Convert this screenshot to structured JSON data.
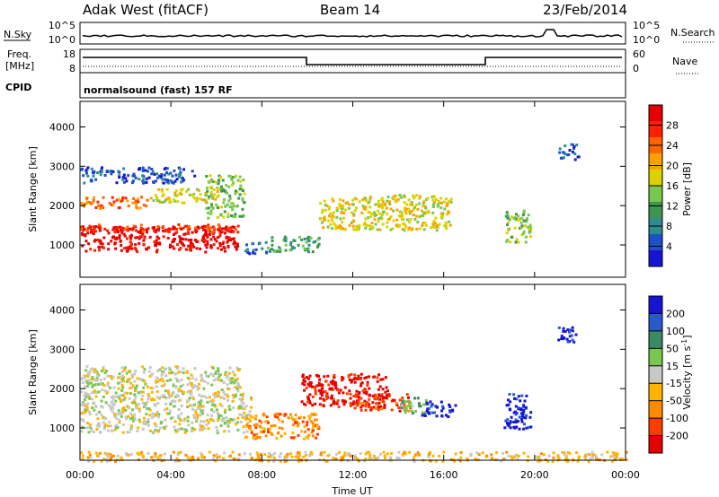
{
  "header": {
    "radar": "Adak West (fitACF)",
    "beam": "Beam 14",
    "date": "23/Feb/2014"
  },
  "strip_nsky": {
    "left_label": "N.Sky",
    "left_ticks": [
      "10^5",
      "10^0"
    ],
    "right_label": "N.Search",
    "right_ticks": [
      "10^5",
      "10^0"
    ]
  },
  "strip_freq": {
    "left_label_1": "Freq.",
    "left_label_2": "[MHz]",
    "left_ticks": [
      "18",
      "8"
    ],
    "right_label": "Nave",
    "right_ticks": [
      "60",
      "0"
    ]
  },
  "strip_cpid": {
    "label": "CPID",
    "text": "normalsound (fast) 157 RF"
  },
  "colors": {
    "power": [
      "#1414d2",
      "#1e50c8",
      "#2e8c8c",
      "#3c9650",
      "#78c850",
      "#dcd200",
      "#ffa000",
      "#ff6400",
      "#ff1e00",
      "#e60000"
    ],
    "velocity": [
      "#1414d2",
      "#2a5ac8",
      "#3a8a64",
      "#78c850",
      "#c8c8c8",
      "#ffb400",
      "#ff8c00",
      "#ff3c00",
      "#e60000"
    ]
  },
  "chart_data": [
    {
      "type": "heatmap",
      "name": "power",
      "ylabel": "Slant Range [km]",
      "xlabel": "",
      "x_ticks": [
        "00:00",
        "04:00",
        "08:00",
        "12:00",
        "16:00",
        "20:00",
        "00:00"
      ],
      "xlim_hours": [
        0,
        24
      ],
      "ylim_km": [
        180,
        4650
      ],
      "y_ticks": [
        1000,
        2000,
        3000,
        4000
      ],
      "colorbar_label": "Power [dB]",
      "colorbar_ticks": [
        "4",
        "8",
        "12",
        "16",
        "20",
        "24",
        "28"
      ],
      "colorbar_range": [
        0,
        32
      ],
      "regions": [
        {
          "x": [
            0.0,
            6.9
          ],
          "y": [
            850,
            1500
          ],
          "c": 9
        },
        {
          "x": [
            0.0,
            7.1
          ],
          "y": [
            1350,
            1550
          ],
          "c": 8
        },
        {
          "x": [
            0.0,
            3.0
          ],
          "y": [
            1950,
            2250
          ],
          "c": 7
        },
        {
          "x": [
            3.0,
            6.0
          ],
          "y": [
            2100,
            2450
          ],
          "c": 5
        },
        {
          "x": [
            5.5,
            7.2
          ],
          "y": [
            1700,
            2800
          ],
          "c": 4
        },
        {
          "x": [
            0.0,
            5.0
          ],
          "y": [
            2600,
            3000
          ],
          "c": 1
        },
        {
          "x": [
            7.2,
            8.2
          ],
          "y": [
            800,
            1100
          ],
          "c": 1
        },
        {
          "x": [
            8.2,
            10.5
          ],
          "y": [
            850,
            1250
          ],
          "c": 3
        },
        {
          "x": [
            10.5,
            16.3
          ],
          "y": [
            1400,
            2300
          ],
          "c": 5
        },
        {
          "x": [
            18.6,
            19.8
          ],
          "y": [
            1100,
            1900
          ],
          "c": 4
        },
        {
          "x": [
            21.0,
            21.9
          ],
          "y": [
            3200,
            3600
          ],
          "c": 1
        }
      ]
    },
    {
      "type": "heatmap",
      "name": "velocity",
      "ylabel": "Slant Range [km]",
      "xlabel": "Time UT",
      "x_ticks": [
        "00:00",
        "04:00",
        "08:00",
        "12:00",
        "16:00",
        "20:00",
        "00:00"
      ],
      "xlim_hours": [
        0,
        24
      ],
      "ylim_km": [
        180,
        4650
      ],
      "y_ticks": [
        1000,
        2000,
        3000,
        4000
      ],
      "colorbar_label": "Velocity [m s^-1]",
      "colorbar_ticks": [
        "200",
        "100",
        "50",
        "15",
        "-15",
        "-50",
        "-100",
        "-200"
      ],
      "regions": [
        {
          "x": [
            0.0,
            7.5
          ],
          "y": [
            900,
            1900
          ],
          "c": 4
        },
        {
          "x": [
            0.0,
            7.0
          ],
          "y": [
            1900,
            2600
          ],
          "c": 4
        },
        {
          "x": [
            7.2,
            10.5
          ],
          "y": [
            750,
            1400
          ],
          "c": 6
        },
        {
          "x": [
            9.7,
            13.5
          ],
          "y": [
            1550,
            2400
          ],
          "c": 8
        },
        {
          "x": [
            12.0,
            14.5
          ],
          "y": [
            1450,
            1900
          ],
          "c": 7
        },
        {
          "x": [
            14.0,
            15.2
          ],
          "y": [
            1400,
            1800
          ],
          "c": 3
        },
        {
          "x": [
            15.0,
            16.5
          ],
          "y": [
            1300,
            1700
          ],
          "c": 0
        },
        {
          "x": [
            18.6,
            19.8
          ],
          "y": [
            1000,
            1900
          ],
          "c": 0
        },
        {
          "x": [
            21.0,
            21.9
          ],
          "y": [
            3200,
            3600
          ],
          "c": 0
        },
        {
          "x": [
            0.0,
            24.0
          ],
          "y": [
            180,
            420
          ],
          "c": 5
        }
      ]
    }
  ]
}
